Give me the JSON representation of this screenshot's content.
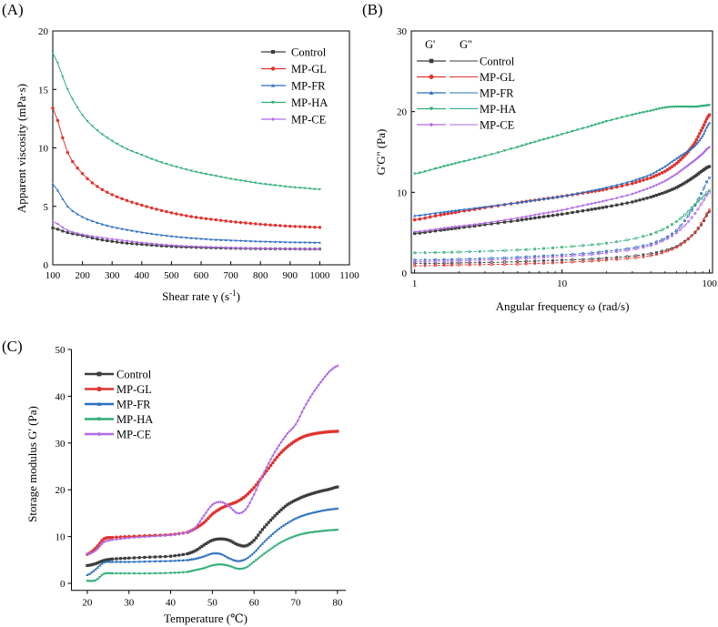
{
  "colors": {
    "Control": "#3c3c3c",
    "MP-GL": "#e0332f",
    "MP-FR": "#2b6fbf",
    "MP-HA": "#2fae76",
    "MP-CE": "#b06ae6"
  },
  "chart_data": [
    {
      "panel_label": "(A)",
      "type": "line",
      "xlabel_main": "Shear rate γ (s",
      "xlabel_sup": "-1",
      "xlabel_end": ")",
      "ylabel": "Apparent viscosity (mPa·s)",
      "xlim": [
        100,
        1100
      ],
      "ylim": [
        0,
        20
      ],
      "xticks": [
        "100",
        "200",
        "300",
        "400",
        "500",
        "600",
        "700",
        "800",
        "900",
        "1000",
        "1100"
      ],
      "yticks": [
        "0",
        "5",
        "10",
        "15",
        "20"
      ],
      "legend_position": "top-right",
      "x": [
        100,
        150,
        200,
        250,
        300,
        350,
        400,
        450,
        500,
        550,
        600,
        650,
        700,
        750,
        800,
        850,
        900,
        950,
        1000
      ],
      "series": [
        {
          "name": "Control",
          "values": [
            3.15,
            2.75,
            2.5,
            2.2,
            2.0,
            1.85,
            1.75,
            1.65,
            1.57,
            1.52,
            1.48,
            1.45,
            1.42,
            1.4,
            1.38,
            1.37,
            1.36,
            1.35,
            1.35
          ]
        },
        {
          "name": "MP-GL",
          "values": [
            13.4,
            9.6,
            7.8,
            6.7,
            6.0,
            5.5,
            5.1,
            4.75,
            4.45,
            4.2,
            4.0,
            3.85,
            3.7,
            3.58,
            3.47,
            3.38,
            3.3,
            3.25,
            3.2
          ]
        },
        {
          "name": "MP-FR",
          "values": [
            6.9,
            5.0,
            4.1,
            3.6,
            3.25,
            3.0,
            2.78,
            2.6,
            2.45,
            2.33,
            2.23,
            2.15,
            2.1,
            2.05,
            2.0,
            1.97,
            1.94,
            1.92,
            1.9
          ]
        },
        {
          "name": "MP-HA",
          "values": [
            18.1,
            15.0,
            12.8,
            11.5,
            10.6,
            9.9,
            9.4,
            8.9,
            8.5,
            8.15,
            7.85,
            7.6,
            7.35,
            7.15,
            6.95,
            6.8,
            6.65,
            6.55,
            6.45
          ]
        },
        {
          "name": "MP-CE",
          "values": [
            3.7,
            2.95,
            2.6,
            2.38,
            2.2,
            2.05,
            1.9,
            1.78,
            1.68,
            1.6,
            1.55,
            1.5,
            1.46,
            1.43,
            1.41,
            1.39,
            1.37,
            1.36,
            1.35
          ]
        }
      ]
    },
    {
      "panel_label": "(B)",
      "type": "line",
      "xscale": "log",
      "xlabel": "Angular frequency ω (rad/s)",
      "ylabel": "G'G'' (Pa)",
      "xlim": [
        1,
        100
      ],
      "ylim": [
        0,
        30
      ],
      "xticks": [
        "1",
        "10",
        "100"
      ],
      "yticks": [
        "0",
        "10",
        "20",
        "30"
      ],
      "legend_header": [
        "G'",
        "G''"
      ],
      "legend_position": "top-left",
      "x": [
        1,
        1.5,
        2,
        3,
        5,
        7,
        10,
        15,
        20,
        30,
        40,
        50,
        60,
        70,
        80,
        90,
        100
      ],
      "series_G1": [
        {
          "name": "Control",
          "values": [
            4.9,
            5.3,
            5.6,
            6.0,
            6.5,
            6.9,
            7.3,
            7.8,
            8.2,
            8.8,
            9.4,
            10.0,
            10.6,
            11.3,
            12.0,
            12.7,
            13.2
          ]
        },
        {
          "name": "MP-GL",
          "values": [
            6.6,
            7.2,
            7.6,
            8.1,
            8.7,
            9.1,
            9.5,
            10.0,
            10.4,
            11.1,
            11.8,
            12.6,
            13.6,
            14.8,
            16.2,
            18.0,
            19.6
          ]
        },
        {
          "name": "MP-FR",
          "values": [
            7.1,
            7.5,
            7.8,
            8.2,
            8.7,
            9.1,
            9.5,
            10.1,
            10.6,
            11.4,
            12.2,
            13.2,
            14.2,
            15.0,
            15.8,
            17.0,
            18.6
          ]
        },
        {
          "name": "MP-HA",
          "values": [
            12.3,
            13.1,
            13.7,
            14.5,
            15.6,
            16.4,
            17.2,
            18.1,
            18.8,
            19.6,
            20.1,
            20.5,
            20.6,
            20.6,
            20.6,
            20.7,
            20.8
          ]
        },
        {
          "name": "MP-CE",
          "values": [
            5.1,
            5.5,
            5.8,
            6.2,
            6.8,
            7.3,
            7.8,
            8.5,
            9.0,
            9.8,
            10.6,
            11.4,
            12.3,
            13.2,
            14.0,
            14.8,
            15.6
          ]
        }
      ],
      "series_G2": [
        {
          "name": "Control",
          "values": [
            1.2,
            1.2,
            1.25,
            1.3,
            1.4,
            1.5,
            1.6,
            1.7,
            1.85,
            2.1,
            2.4,
            2.8,
            3.3,
            4.1,
            5.0,
            6.2,
            7.6
          ]
        },
        {
          "name": "MP-GL",
          "values": [
            0.9,
            0.95,
            1.0,
            1.05,
            1.1,
            1.2,
            1.3,
            1.45,
            1.6,
            1.85,
            2.15,
            2.6,
            3.2,
            4.0,
            5.1,
            6.4,
            7.8
          ]
        },
        {
          "name": "MP-FR",
          "values": [
            1.6,
            1.65,
            1.7,
            1.8,
            1.95,
            2.1,
            2.25,
            2.45,
            2.7,
            3.1,
            3.6,
            4.3,
            5.3,
            6.8,
            8.4,
            10.2,
            11.8
          ]
        },
        {
          "name": "MP-HA",
          "values": [
            2.5,
            2.55,
            2.6,
            2.7,
            2.85,
            3.0,
            3.2,
            3.45,
            3.7,
            4.2,
            4.8,
            5.5,
            6.4,
            7.4,
            8.5,
            9.4,
            10.2
          ]
        },
        {
          "name": "MP-CE",
          "values": [
            1.4,
            1.45,
            1.5,
            1.6,
            1.75,
            1.9,
            2.05,
            2.25,
            2.5,
            2.9,
            3.4,
            4.1,
            5.0,
            6.1,
            7.4,
            8.8,
            10.0
          ]
        }
      ]
    },
    {
      "panel_label": "(C)",
      "type": "line",
      "xlabel": "Temperature (℃)",
      "ylabel": "Storage modulus G' (Pa)",
      "xlim": [
        15,
        82
      ],
      "ylim": [
        0,
        50
      ],
      "xticks": [
        "20",
        "30",
        "40",
        "50",
        "60",
        "70",
        "80"
      ],
      "yticks": [
        "0",
        "10",
        "20",
        "30",
        "40",
        "50"
      ],
      "legend_position": "top-left",
      "x": [
        20,
        22,
        24,
        26,
        30,
        35,
        40,
        44,
        46,
        48,
        50,
        52,
        54,
        56,
        58,
        60,
        62,
        64,
        66,
        68,
        70,
        72,
        74,
        76,
        78,
        80
      ],
      "series": [
        {
          "name": "Control",
          "values": [
            3.8,
            4.2,
            4.9,
            5.2,
            5.4,
            5.6,
            5.8,
            6.3,
            7.0,
            8.2,
            9.2,
            9.5,
            9.2,
            8.3,
            8.0,
            9.2,
            11.5,
            13.5,
            15.3,
            16.8,
            17.8,
            18.6,
            19.2,
            19.7,
            20.1,
            20.6
          ]
        },
        {
          "name": "MP-GL",
          "values": [
            6.2,
            7.5,
            9.5,
            9.8,
            10.0,
            10.2,
            10.4,
            10.9,
            11.8,
            13.0,
            14.8,
            16.0,
            16.8,
            17.5,
            18.7,
            20.5,
            22.8,
            25.2,
            27.5,
            29.2,
            30.5,
            31.4,
            31.9,
            32.2,
            32.4,
            32.5
          ]
        },
        {
          "name": "MP-FR",
          "values": [
            1.8,
            3.0,
            4.5,
            4.6,
            4.6,
            4.7,
            4.8,
            5.0,
            5.3,
            5.8,
            6.4,
            6.3,
            5.4,
            4.8,
            5.2,
            6.6,
            8.5,
            10.2,
            11.7,
            12.9,
            13.9,
            14.6,
            15.1,
            15.5,
            15.8,
            16.0
          ]
        },
        {
          "name": "MP-HA",
          "values": [
            0.5,
            0.6,
            2.0,
            2.1,
            2.1,
            2.1,
            2.2,
            2.4,
            2.8,
            3.2,
            3.8,
            4.0,
            3.7,
            3.1,
            3.3,
            4.6,
            6.0,
            7.3,
            8.5,
            9.4,
            10.1,
            10.6,
            10.9,
            11.1,
            11.3,
            11.4
          ]
        },
        {
          "name": "MP-CE",
          "values": [
            6.2,
            7.0,
            8.8,
            9.3,
            9.7,
            10.0,
            10.3,
            10.9,
            12.0,
            14.5,
            16.8,
            17.4,
            16.5,
            15.0,
            15.8,
            19.0,
            23.0,
            26.5,
            29.5,
            32.0,
            34.0,
            37.5,
            40.5,
            43.0,
            45.2,
            46.5
          ]
        }
      ]
    }
  ]
}
